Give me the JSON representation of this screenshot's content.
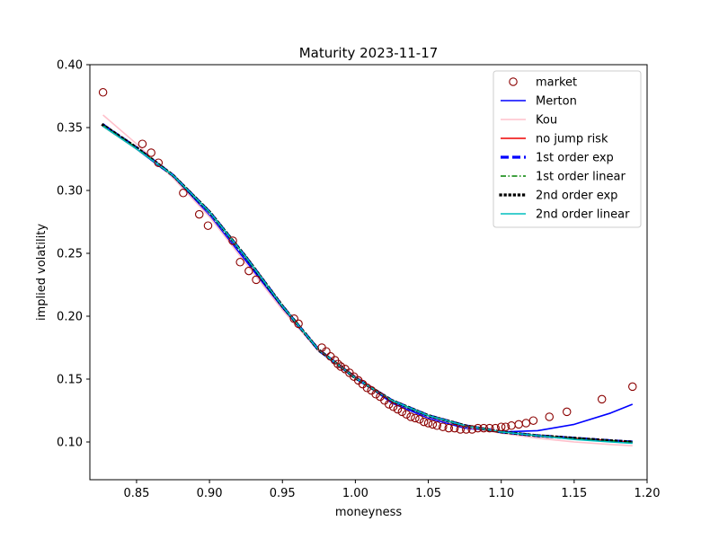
{
  "chart_data": {
    "type": "line",
    "title": "Maturity 2023-11-17",
    "xlabel": "moneyness",
    "ylabel": "implied volatility",
    "xlim": [
      0.818,
      1.2
    ],
    "ylim": [
      0.07,
      0.4
    ],
    "xticks": [
      0.85,
      0.9,
      0.95,
      1.0,
      1.05,
      1.1,
      1.15,
      1.2
    ],
    "xtick_labels": [
      "0.85",
      "0.90",
      "0.95",
      "1.00",
      "1.05",
      "1.10",
      "1.15",
      "1.20"
    ],
    "yticks": [
      0.1,
      0.15,
      0.2,
      0.25,
      0.3,
      0.35,
      0.4
    ],
    "ytick_labels": [
      "0.10",
      "0.15",
      "0.20",
      "0.25",
      "0.30",
      "0.35",
      "0.40"
    ],
    "grid": false,
    "legend_position": "top-right",
    "series": [
      {
        "name": "market",
        "kind": "scatter",
        "color": "#8b0000",
        "x": [
          0.827,
          0.854,
          0.86,
          0.865,
          0.882,
          0.893,
          0.899,
          0.916,
          0.921,
          0.927,
          0.932,
          0.958,
          0.961,
          0.977,
          0.98,
          0.983,
          0.986,
          0.988,
          0.99,
          0.993,
          0.996,
          0.999,
          1.002,
          1.005,
          1.008,
          1.011,
          1.014,
          1.017,
          1.02,
          1.023,
          1.026,
          1.029,
          1.032,
          1.035,
          1.038,
          1.041,
          1.044,
          1.047,
          1.05,
          1.053,
          1.056,
          1.06,
          1.064,
          1.068,
          1.072,
          1.076,
          1.08,
          1.084,
          1.088,
          1.092,
          1.096,
          1.1,
          1.103,
          1.107,
          1.112,
          1.117,
          1.122,
          1.133,
          1.145,
          1.169,
          1.19
        ],
        "y": [
          0.378,
          0.337,
          0.33,
          0.322,
          0.298,
          0.281,
          0.272,
          0.26,
          0.243,
          0.236,
          0.229,
          0.198,
          0.194,
          0.175,
          0.172,
          0.168,
          0.165,
          0.162,
          0.16,
          0.158,
          0.155,
          0.152,
          0.149,
          0.146,
          0.143,
          0.141,
          0.138,
          0.136,
          0.133,
          0.13,
          0.128,
          0.126,
          0.124,
          0.122,
          0.12,
          0.119,
          0.118,
          0.116,
          0.115,
          0.114,
          0.113,
          0.112,
          0.111,
          0.111,
          0.11,
          0.11,
          0.11,
          0.111,
          0.111,
          0.111,
          0.111,
          0.112,
          0.112,
          0.113,
          0.114,
          0.115,
          0.117,
          0.12,
          0.124,
          0.134,
          0.144
        ]
      },
      {
        "name": "Merton",
        "kind": "line",
        "color": "#0000ff",
        "style": "solid",
        "x": [
          0.827,
          0.85,
          0.875,
          0.9,
          0.925,
          0.95,
          0.975,
          1.0,
          1.025,
          1.05,
          1.075,
          1.1,
          1.125,
          1.15,
          1.175,
          1.19
        ],
        "y": [
          0.353,
          0.333,
          0.311,
          0.28,
          0.244,
          0.206,
          0.172,
          0.152,
          0.131,
          0.119,
          0.111,
          0.108,
          0.109,
          0.114,
          0.123,
          0.13
        ]
      },
      {
        "name": "Kou",
        "kind": "line",
        "color": "#ffc0cb",
        "style": "solid",
        "x": [
          0.827,
          0.85,
          0.875,
          0.9,
          0.925,
          0.95,
          0.975,
          1.0,
          1.025,
          1.05,
          1.075,
          1.1,
          1.125,
          1.15,
          1.175,
          1.19
        ],
        "y": [
          0.36,
          0.337,
          0.31,
          0.279,
          0.242,
          0.205,
          0.172,
          0.153,
          0.133,
          0.12,
          0.112,
          0.107,
          0.103,
          0.1,
          0.098,
          0.097
        ]
      },
      {
        "name": "no jump risk",
        "kind": "line",
        "color": "#ee0000",
        "style": "solid",
        "x": [
          0.827,
          0.85,
          0.875,
          0.9,
          0.925,
          0.95,
          0.975,
          1.0,
          1.025,
          1.05,
          1.075,
          1.1,
          1.125,
          1.15,
          1.175,
          1.19
        ],
        "y": [
          0.351,
          0.333,
          0.312,
          0.283,
          0.247,
          0.208,
          0.173,
          0.151,
          0.133,
          0.121,
          0.113,
          0.108,
          0.105,
          0.103,
          0.101,
          0.1
        ]
      },
      {
        "name": "1st order exp",
        "kind": "line",
        "color": "#0000ff",
        "style": "dashed-bold",
        "x": [
          0.827,
          0.85,
          0.875,
          0.9,
          0.925,
          0.95,
          0.975,
          1.0,
          1.025,
          1.05,
          1.075,
          1.1,
          1.125,
          1.15,
          1.175,
          1.19
        ],
        "y": [
          0.352,
          0.334,
          0.312,
          0.283,
          0.247,
          0.208,
          0.173,
          0.151,
          0.133,
          0.121,
          0.113,
          0.108,
          0.105,
          0.103,
          0.101,
          0.1
        ]
      },
      {
        "name": "1st order linear",
        "kind": "line",
        "color": "#008000",
        "style": "dashdot",
        "x": [
          0.827,
          0.85,
          0.875,
          0.9,
          0.925,
          0.95,
          0.975,
          1.0,
          1.025,
          1.05,
          1.075,
          1.1,
          1.125,
          1.15,
          1.175,
          1.19
        ],
        "y": [
          0.352,
          0.334,
          0.312,
          0.283,
          0.247,
          0.208,
          0.173,
          0.151,
          0.133,
          0.121,
          0.113,
          0.108,
          0.105,
          0.103,
          0.101,
          0.1
        ]
      },
      {
        "name": "2nd order exp",
        "kind": "line",
        "color": "#000000",
        "style": "dotted-bold",
        "x": [
          0.827,
          0.85,
          0.875,
          0.9,
          0.925,
          0.95,
          0.975,
          1.0,
          1.025,
          1.05,
          1.075,
          1.1,
          1.125,
          1.15,
          1.175,
          1.19
        ],
        "y": [
          0.352,
          0.334,
          0.312,
          0.283,
          0.247,
          0.208,
          0.173,
          0.151,
          0.133,
          0.121,
          0.113,
          0.108,
          0.105,
          0.103,
          0.101,
          0.1
        ]
      },
      {
        "name": "2nd order linear",
        "kind": "line",
        "color": "#00bfbf",
        "style": "solid",
        "x": [
          0.827,
          0.85,
          0.875,
          0.9,
          0.925,
          0.95,
          0.975,
          1.0,
          1.025,
          1.05,
          1.075,
          1.1,
          1.125,
          1.15,
          1.175,
          1.19
        ],
        "y": [
          0.351,
          0.333,
          0.312,
          0.283,
          0.247,
          0.208,
          0.173,
          0.151,
          0.133,
          0.121,
          0.113,
          0.108,
          0.105,
          0.102,
          0.1,
          0.099
        ]
      }
    ]
  }
}
